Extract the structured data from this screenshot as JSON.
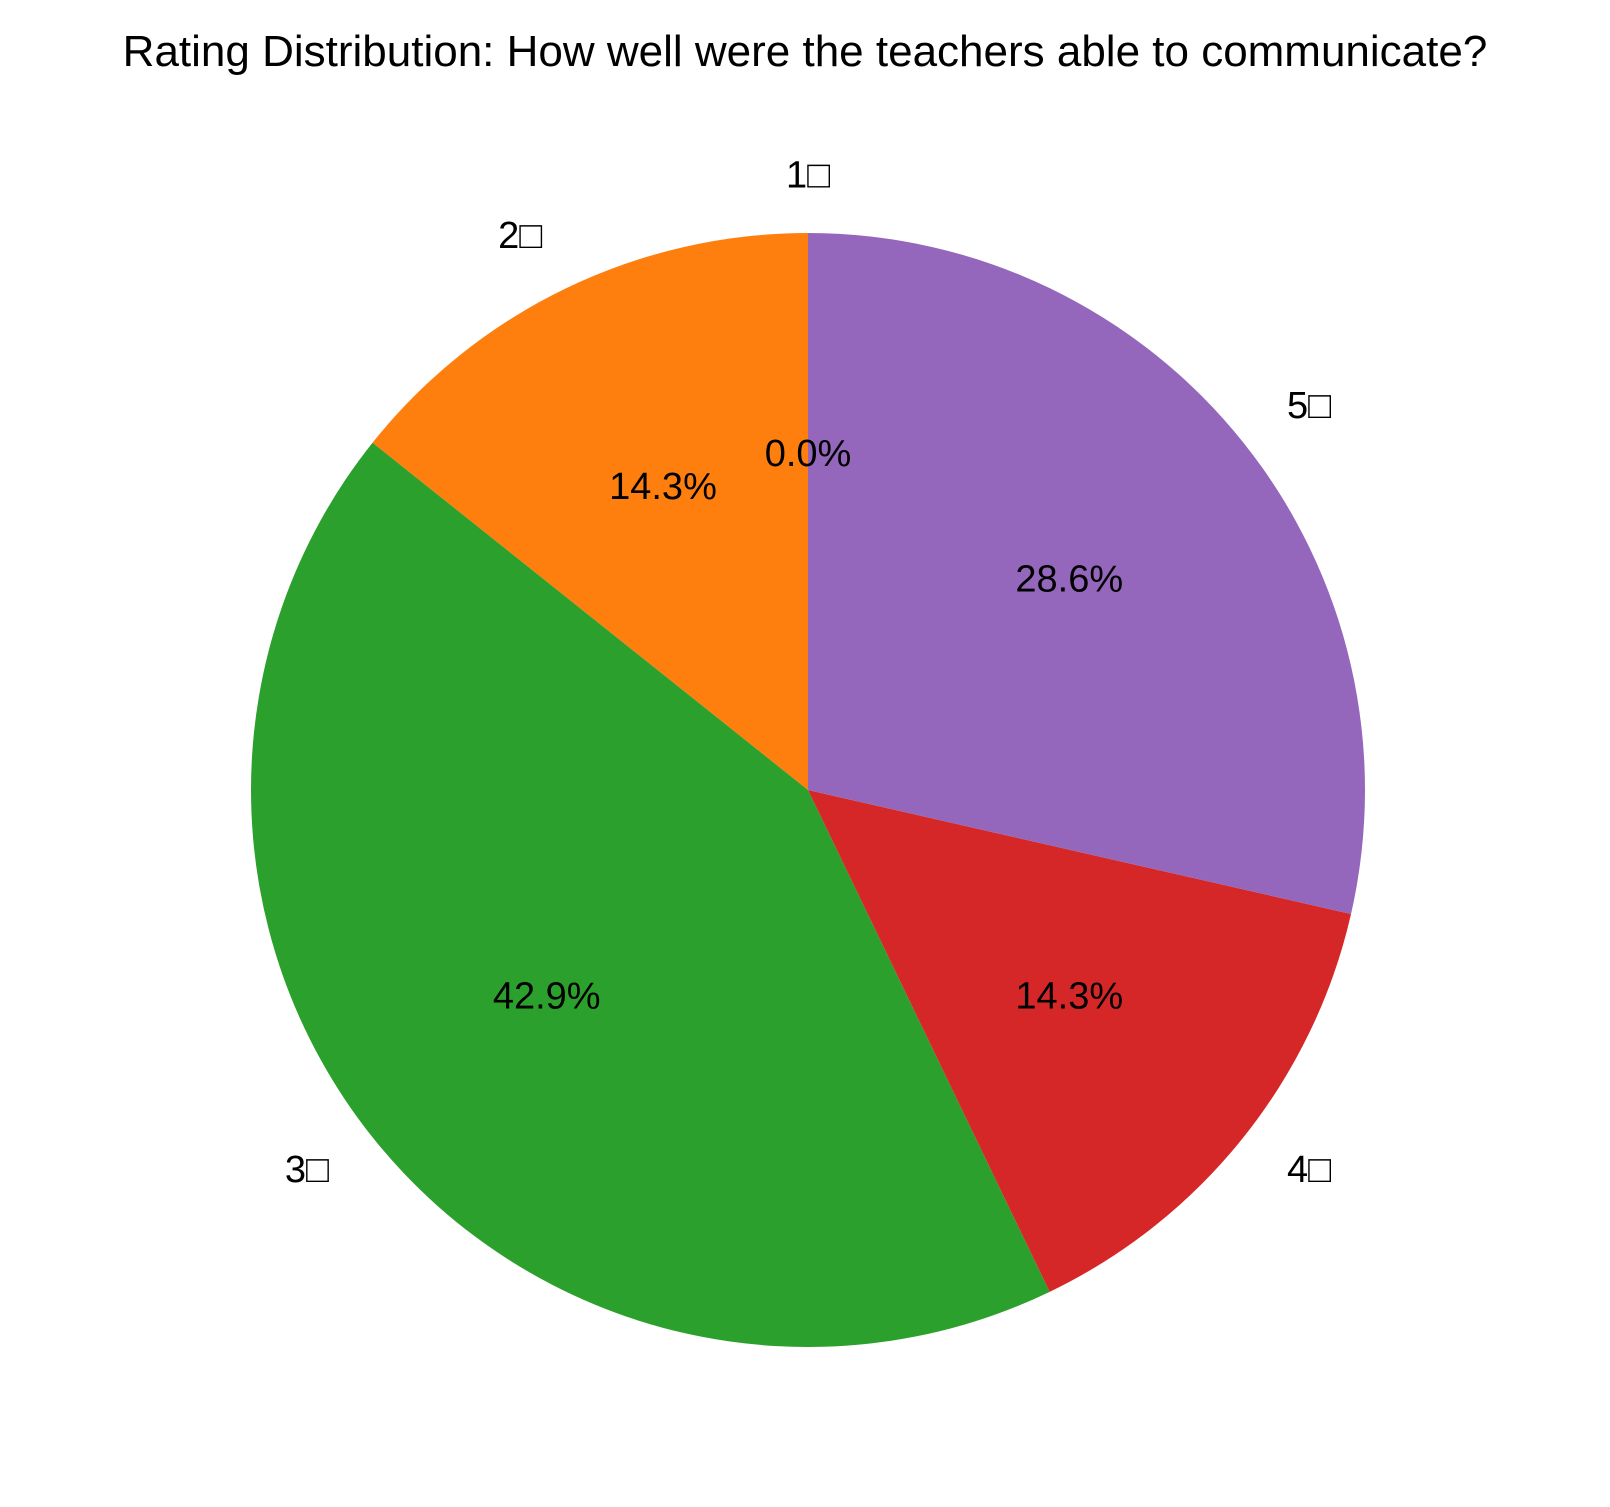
{
  "chart_data": {
    "type": "pie",
    "title": "Rating Distribution: How well were the teachers able to communicate?",
    "categories": [
      "1□",
      "2□",
      "3□",
      "4□",
      "5□"
    ],
    "values": [
      0.0,
      14.3,
      42.9,
      14.3,
      28.6
    ],
    "percent_labels": [
      "0.0%",
      "14.3%",
      "42.9%",
      "14.3%",
      "28.6%"
    ],
    "colors": [
      "#1f77b4",
      "#ff7f0e",
      "#2ca02c",
      "#d62728",
      "#9467bd"
    ],
    "start_angle_deg": 90,
    "direction": "counterclockwise"
  }
}
